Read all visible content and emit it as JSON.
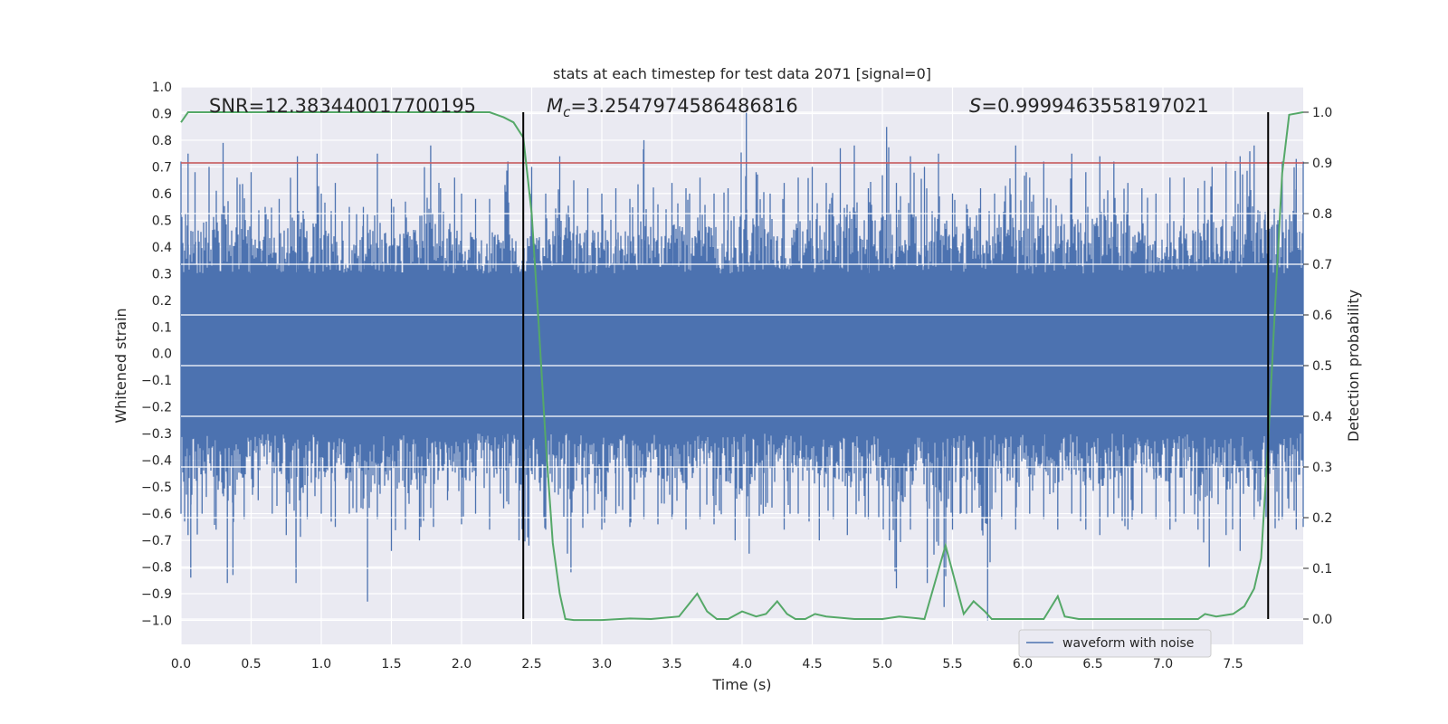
{
  "chart_data": {
    "type": "line",
    "title": "stats at each timestep for test data 2071 [signal=0]",
    "xlabel": "Time (s)",
    "ylabel_left": "Whitened strain",
    "ylabel_right": "Detection probability",
    "xlim": [
      0.0,
      8.0
    ],
    "ylim_left": [
      -1.09,
      1.0
    ],
    "ylim_right": [
      -0.05,
      1.05
    ],
    "x_ticks": [
      "0.0",
      "0.5",
      "1.0",
      "1.5",
      "2.0",
      "2.5",
      "3.0",
      "3.5",
      "4.0",
      "4.5",
      "5.0",
      "5.5",
      "6.0",
      "6.5",
      "7.0",
      "7.5"
    ],
    "y_left_ticks": [
      "1.0",
      "0.9",
      "0.8",
      "0.7",
      "0.6",
      "0.5",
      "0.4",
      "0.3",
      "0.2",
      "0.1",
      "0.0",
      "−0.1",
      "−0.2",
      "−0.3",
      "−0.4",
      "−0.5",
      "−0.6",
      "−0.7",
      "−0.8",
      "−0.9",
      "−1.0"
    ],
    "y_left_values": [
      1.0,
      0.9,
      0.8,
      0.7,
      0.6,
      0.5,
      0.4,
      0.3,
      0.2,
      0.1,
      0.0,
      -0.1,
      -0.2,
      -0.3,
      -0.4,
      -0.5,
      -0.6,
      -0.7,
      -0.8,
      -0.9,
      -1.0
    ],
    "y_right_ticks": [
      "1.0",
      "0.9",
      "0.8",
      "0.7",
      "0.6",
      "0.5",
      "0.4",
      "0.3",
      "0.2",
      "0.1",
      "0.0"
    ],
    "y_right_values": [
      1.0,
      0.9,
      0.8,
      0.7,
      0.6,
      0.5,
      0.4,
      0.3,
      0.2,
      0.1,
      0.0
    ],
    "grid": true,
    "legend": {
      "entries": [
        "waveform with noise"
      ],
      "placement": "lower-right"
    },
    "annotations": {
      "snr": "SNR=12.383440017700195",
      "mc_symbol": "M",
      "mc_sub": "c",
      "mc_value": "=3.2547974586486816",
      "s_symbol": "S",
      "s_value": "=0.9999463558197021"
    },
    "threshold": {
      "value": 0.9,
      "axis": "right",
      "color": "#c44e52"
    },
    "vertical_markers": [
      2.44,
      7.75
    ],
    "series": [
      {
        "name": "waveform with noise",
        "axis": "left",
        "color": "#4c72b0",
        "envelope_upper": [
          [
            0.0,
            0.72
          ],
          [
            0.05,
            0.75
          ],
          [
            0.1,
            0.68
          ],
          [
            0.2,
            0.7
          ],
          [
            0.3,
            0.79
          ],
          [
            0.4,
            0.66
          ],
          [
            0.5,
            0.68
          ],
          [
            0.6,
            0.55
          ],
          [
            0.7,
            0.58
          ],
          [
            0.83,
            0.74
          ],
          [
            0.97,
            0.75
          ],
          [
            1.0,
            0.6
          ],
          [
            1.1,
            0.64
          ],
          [
            1.2,
            0.55
          ],
          [
            1.3,
            0.55
          ],
          [
            1.4,
            0.75
          ],
          [
            1.5,
            0.58
          ],
          [
            1.6,
            0.57
          ],
          [
            1.78,
            0.78
          ],
          [
            1.85,
            0.62
          ],
          [
            1.95,
            0.66
          ],
          [
            2.0,
            0.6
          ],
          [
            2.1,
            0.58
          ],
          [
            2.2,
            0.58
          ],
          [
            2.33,
            0.72
          ],
          [
            2.41,
            0.33
          ],
          [
            2.5,
            0.7
          ],
          [
            2.6,
            0.6
          ],
          [
            2.7,
            0.74
          ],
          [
            2.8,
            0.65
          ],
          [
            2.9,
            0.62
          ],
          [
            3.0,
            0.6
          ],
          [
            3.1,
            0.62
          ],
          [
            3.2,
            0.58
          ],
          [
            3.3,
            0.8
          ],
          [
            3.4,
            0.56
          ],
          [
            3.5,
            0.64
          ],
          [
            3.6,
            0.62
          ],
          [
            3.7,
            0.66
          ],
          [
            3.8,
            0.6
          ],
          [
            3.9,
            0.62
          ],
          [
            4.03,
            0.92
          ],
          [
            4.1,
            0.68
          ],
          [
            4.2,
            0.6
          ],
          [
            4.3,
            0.64
          ],
          [
            4.4,
            0.66
          ],
          [
            4.5,
            0.7
          ],
          [
            4.6,
            0.64
          ],
          [
            4.7,
            0.77
          ],
          [
            4.8,
            0.78
          ],
          [
            4.9,
            0.62
          ],
          [
            5.03,
            0.85
          ],
          [
            5.1,
            0.64
          ],
          [
            5.2,
            0.74
          ],
          [
            5.3,
            0.7
          ],
          [
            5.4,
            0.75
          ],
          [
            5.5,
            0.6
          ],
          [
            5.6,
            0.56
          ],
          [
            5.7,
            0.62
          ],
          [
            5.8,
            0.6
          ],
          [
            5.95,
            0.78
          ],
          [
            6.05,
            0.66
          ],
          [
            6.15,
            0.72
          ],
          [
            6.2,
            0.58
          ],
          [
            6.35,
            0.75
          ],
          [
            6.45,
            0.68
          ],
          [
            6.55,
            0.74
          ],
          [
            6.65,
            0.72
          ],
          [
            6.75,
            0.64
          ],
          [
            6.85,
            0.62
          ],
          [
            6.95,
            0.6
          ],
          [
            7.05,
            0.66
          ],
          [
            7.15,
            0.66
          ],
          [
            7.25,
            0.62
          ],
          [
            7.35,
            0.7
          ],
          [
            7.45,
            0.72
          ],
          [
            7.55,
            0.74
          ],
          [
            7.65,
            0.78
          ],
          [
            7.75,
            0.7
          ],
          [
            7.85,
            0.72
          ],
          [
            7.95,
            0.73
          ],
          [
            8.0,
            0.72
          ]
        ],
        "envelope_lower": [
          [
            0.0,
            -0.6
          ],
          [
            0.05,
            -0.68
          ],
          [
            0.07,
            -0.84
          ],
          [
            0.15,
            -0.6
          ],
          [
            0.25,
            -0.66
          ],
          [
            0.33,
            -0.86
          ],
          [
            0.37,
            -0.83
          ],
          [
            0.45,
            -0.62
          ],
          [
            0.55,
            -0.55
          ],
          [
            0.65,
            -0.6
          ],
          [
            0.75,
            -0.68
          ],
          [
            0.82,
            -0.86
          ],
          [
            0.9,
            -0.62
          ],
          [
            1.0,
            -0.6
          ],
          [
            1.1,
            -0.65
          ],
          [
            1.2,
            -0.6
          ],
          [
            1.33,
            -0.93
          ],
          [
            1.4,
            -0.62
          ],
          [
            1.5,
            -0.74
          ],
          [
            1.6,
            -0.66
          ],
          [
            1.7,
            -0.7
          ],
          [
            1.8,
            -0.65
          ],
          [
            1.9,
            -0.55
          ],
          [
            2.0,
            -0.64
          ],
          [
            2.1,
            -0.6
          ],
          [
            2.2,
            -0.66
          ],
          [
            2.3,
            -0.58
          ],
          [
            2.41,
            -0.7
          ],
          [
            2.48,
            -0.72
          ],
          [
            2.6,
            -0.66
          ],
          [
            2.78,
            -0.82
          ],
          [
            2.9,
            -0.6
          ],
          [
            3.0,
            -0.66
          ],
          [
            3.1,
            -0.6
          ],
          [
            3.2,
            -0.65
          ],
          [
            3.3,
            -0.62
          ],
          [
            3.4,
            -0.64
          ],
          [
            3.5,
            -0.62
          ],
          [
            3.6,
            -0.66
          ],
          [
            3.7,
            -0.62
          ],
          [
            3.8,
            -0.64
          ],
          [
            3.95,
            -0.7
          ],
          [
            4.05,
            -0.75
          ],
          [
            4.15,
            -0.6
          ],
          [
            4.3,
            -0.66
          ],
          [
            4.4,
            -0.6
          ],
          [
            4.55,
            -0.7
          ],
          [
            4.65,
            -0.62
          ],
          [
            4.75,
            -0.68
          ],
          [
            4.9,
            -0.62
          ],
          [
            5.05,
            -0.7
          ],
          [
            5.1,
            -0.88
          ],
          [
            5.2,
            -0.66
          ],
          [
            5.32,
            -0.86
          ],
          [
            5.4,
            -0.72
          ],
          [
            5.44,
            -0.95
          ],
          [
            5.5,
            -0.66
          ],
          [
            5.6,
            -0.6
          ],
          [
            5.75,
            -1.0
          ],
          [
            5.85,
            -0.62
          ],
          [
            5.95,
            -0.66
          ],
          [
            6.05,
            -0.6
          ],
          [
            6.15,
            -0.62
          ],
          [
            6.25,
            -0.66
          ],
          [
            6.35,
            -0.6
          ],
          [
            6.45,
            -0.66
          ],
          [
            6.55,
            -0.68
          ],
          [
            6.65,
            -0.6
          ],
          [
            6.75,
            -0.66
          ],
          [
            6.85,
            -0.6
          ],
          [
            6.95,
            -0.62
          ],
          [
            7.05,
            -0.66
          ],
          [
            7.15,
            -0.6
          ],
          [
            7.25,
            -0.66
          ],
          [
            7.33,
            -0.8
          ],
          [
            7.45,
            -0.68
          ],
          [
            7.55,
            -0.74
          ],
          [
            7.65,
            -0.62
          ],
          [
            7.75,
            -0.7
          ],
          [
            7.85,
            -0.62
          ],
          [
            7.95,
            -0.66
          ],
          [
            8.0,
            -0.65
          ]
        ]
      },
      {
        "name": "",
        "axis": "right",
        "color": "#55a868",
        "x": [
          0.0,
          0.05,
          0.1,
          0.2,
          0.3,
          0.5,
          1.0,
          1.5,
          2.0,
          2.2,
          2.3,
          2.37,
          2.44,
          2.5,
          2.55,
          2.6,
          2.65,
          2.7,
          2.74,
          2.8,
          3.0,
          3.2,
          3.35,
          3.55,
          3.68,
          3.75,
          3.82,
          3.9,
          4.0,
          4.1,
          4.17,
          4.25,
          4.32,
          4.38,
          4.45,
          4.52,
          4.6,
          4.8,
          5.0,
          5.12,
          5.3,
          5.45,
          5.58,
          5.65,
          5.73,
          5.78,
          5.85,
          6.0,
          6.15,
          6.25,
          6.3,
          6.4,
          6.6,
          7.0,
          7.25,
          7.3,
          7.38,
          7.5,
          7.58,
          7.65,
          7.7,
          7.75,
          7.8,
          7.85,
          7.9,
          8.0
        ],
        "y": [
          0.98,
          1.0,
          1.0,
          1.0,
          1.0,
          1.0,
          1.0,
          1.0,
          1.0,
          1.0,
          0.99,
          0.98,
          0.95,
          0.8,
          0.58,
          0.35,
          0.15,
          0.05,
          0.0,
          -0.002,
          -0.002,
          0.001,
          0.0,
          0.005,
          0.05,
          0.015,
          0.0,
          0.0,
          0.015,
          0.005,
          0.01,
          0.035,
          0.01,
          0.0,
          0.0,
          0.01,
          0.005,
          0.0,
          0.0,
          0.005,
          0.0,
          0.145,
          0.01,
          0.035,
          0.015,
          0.0,
          0.0,
          0.0,
          0.0,
          0.045,
          0.005,
          0.0,
          0.0,
          0.0,
          0.0,
          0.01,
          0.005,
          0.01,
          0.025,
          0.06,
          0.12,
          0.35,
          0.62,
          0.88,
          0.995,
          1.0
        ]
      }
    ]
  }
}
